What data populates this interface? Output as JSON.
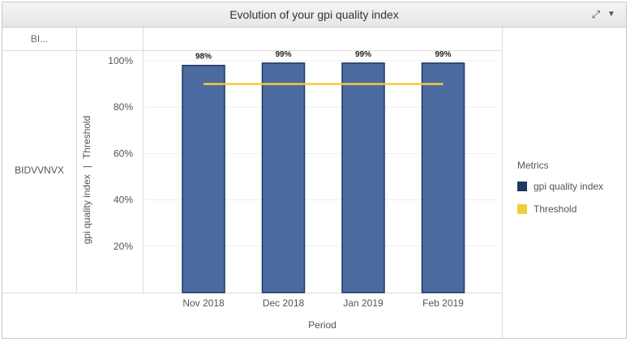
{
  "header": {
    "title": "Evolution of your gpi quality index",
    "expand_icon": "expand-icon",
    "menu_icon": "chevron-down-icon"
  },
  "table": {
    "column_header": "BI...",
    "row_label": "BIDVVNVX"
  },
  "colors": {
    "bar": "#4a6aa0",
    "bar_border": "#1f3864",
    "threshold": "#f2cc3a",
    "legend_index": "#1f3864",
    "grid": "#eeeeee"
  },
  "chart_data": {
    "type": "bar",
    "categories": [
      "Nov 2018",
      "Dec 2018",
      "Jan 2019",
      "Feb 2019"
    ],
    "series": [
      {
        "name": "gpi quality index",
        "type": "bar",
        "values": [
          98,
          99,
          99,
          99
        ],
        "labels": [
          "98%",
          "99%",
          "99%",
          "99%"
        ]
      },
      {
        "name": "Threshold",
        "type": "line",
        "values": [
          90,
          90,
          90,
          90
        ]
      }
    ],
    "title": "Evolution of your gpi quality index",
    "xlabel": "Period",
    "ylabel_parts": [
      "gpi quality index",
      "|",
      "Threshold"
    ],
    "ylim": [
      0,
      100
    ],
    "yticks": [
      20,
      40,
      60,
      80,
      100
    ],
    "ytick_labels": [
      "20%",
      "40%",
      "60%",
      "80%",
      "100%"
    ],
    "grid": true,
    "legend": {
      "title": "Metrics",
      "position": "right",
      "entries": [
        "gpi quality index",
        "Threshold"
      ]
    }
  }
}
